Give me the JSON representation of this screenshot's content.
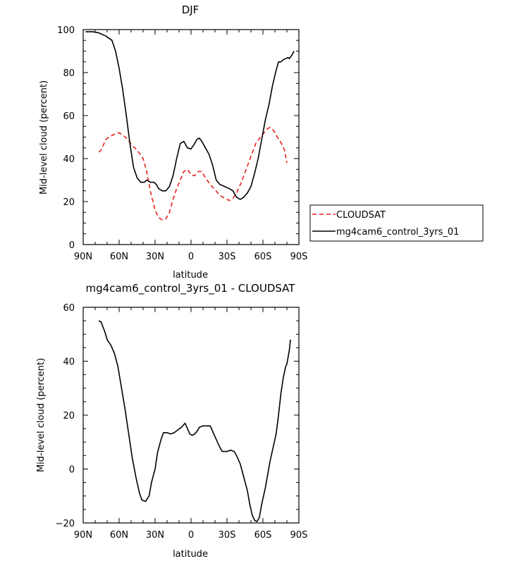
{
  "chart_data": [
    {
      "type": "line",
      "title": "DJF",
      "xlabel": "latitude",
      "ylabel": "Mid-level cloud (percent)",
      "x_axis": "latitude, 90 (north) to -90 (south)",
      "xlim": [
        90,
        -90
      ],
      "ylim": [
        0,
        100
      ],
      "x_ticks": [
        90,
        60,
        30,
        0,
        -30,
        -60,
        -90
      ],
      "x_tick_labels": [
        "90N",
        "60N",
        "30N",
        "0",
        "30S",
        "60S",
        "90S"
      ],
      "y_ticks": [
        0,
        20,
        40,
        60,
        80,
        100
      ],
      "y_tick_labels": [
        "0",
        "20",
        "40",
        "60",
        "80",
        "100"
      ],
      "legend_position": "right",
      "series": [
        {
          "name": "CLOUDSAT",
          "color": "#e8201a",
          "dash": "dashed",
          "points": [
            [
              77,
              43
            ],
            [
              75,
              44
            ],
            [
              71,
              49
            ],
            [
              67,
              50.5
            ],
            [
              63,
              51.5
            ],
            [
              60,
              52
            ],
            [
              57,
              51
            ],
            [
              53,
              49
            ],
            [
              49,
              46
            ],
            [
              45,
              44
            ],
            [
              40,
              40
            ],
            [
              37,
              34
            ],
            [
              34,
              25
            ],
            [
              30,
              16
            ],
            [
              27,
              12.5
            ],
            [
              24,
              11.5
            ],
            [
              21,
              12
            ],
            [
              18,
              15
            ],
            [
              15,
              21
            ],
            [
              12,
              26
            ],
            [
              9,
              30
            ],
            [
              6,
              34
            ],
            [
              3,
              35
            ],
            [
              0,
              32.5
            ],
            [
              -3,
              32
            ],
            [
              -6,
              34
            ],
            [
              -9,
              34
            ],
            [
              -12,
              31
            ],
            [
              -16,
              28
            ],
            [
              -20,
              25.5
            ],
            [
              -24,
              23
            ],
            [
              -28,
              21.5
            ],
            [
              -32,
              20.5
            ],
            [
              -35,
              21.5
            ],
            [
              -38,
              24
            ],
            [
              -42,
              29
            ],
            [
              -46,
              35
            ],
            [
              -50,
              41
            ],
            [
              -54,
              47
            ],
            [
              -58,
              50
            ],
            [
              -61,
              52
            ],
            [
              -64,
              54
            ],
            [
              -66,
              54.5
            ],
            [
              -69,
              53
            ],
            [
              -72,
              50
            ],
            [
              -75,
              47.5
            ],
            [
              -78,
              44
            ],
            [
              -80,
              38
            ]
          ]
        },
        {
          "name": "mg4cam6_control_3yrs_01",
          "color": "#000000",
          "dash": "solid",
          "points": [
            [
              88,
              99
            ],
            [
              82,
              99
            ],
            [
              77,
              98.5
            ],
            [
              71,
              97
            ],
            [
              66,
              95
            ],
            [
              63,
              90
            ],
            [
              60,
              82
            ],
            [
              57,
              72
            ],
            [
              54,
              60
            ],
            [
              51,
              47
            ],
            [
              48,
              36
            ],
            [
              45,
              31
            ],
            [
              42,
              29
            ],
            [
              39,
              29
            ],
            [
              37,
              30
            ],
            [
              34,
              29
            ],
            [
              31,
              29
            ],
            [
              29,
              28
            ],
            [
              27,
              26
            ],
            [
              24,
              25
            ],
            [
              21,
              25
            ],
            [
              18,
              27
            ],
            [
              15,
              32
            ],
            [
              12,
              40
            ],
            [
              9,
              47
            ],
            [
              6,
              48
            ],
            [
              3,
              45
            ],
            [
              0,
              44.5
            ],
            [
              -3,
              47
            ],
            [
              -5,
              49
            ],
            [
              -7,
              49.5
            ],
            [
              -9,
              48
            ],
            [
              -12,
              45
            ],
            [
              -15,
              42
            ],
            [
              -18,
              37
            ],
            [
              -21,
              30
            ],
            [
              -24,
              28
            ],
            [
              -28,
              27
            ],
            [
              -32,
              26
            ],
            [
              -35,
              25
            ],
            [
              -38,
              22
            ],
            [
              -41,
              21
            ],
            [
              -44,
              22
            ],
            [
              -47,
              24
            ],
            [
              -50,
              27
            ],
            [
              -53,
              33
            ],
            [
              -56,
              40
            ],
            [
              -59,
              49
            ],
            [
              -62,
              58
            ],
            [
              -65,
              65
            ],
            [
              -68,
              74
            ],
            [
              -71,
              81
            ],
            [
              -73,
              85
            ],
            [
              -75,
              85
            ],
            [
              -77,
              86
            ],
            [
              -79,
              86.5
            ],
            [
              -81,
              87
            ],
            [
              -82,
              86.5
            ],
            [
              -84,
              88
            ],
            [
              -86,
              90
            ]
          ]
        }
      ]
    },
    {
      "type": "line",
      "title": "mg4cam6_control_3yrs_01 - CLOUDSAT",
      "xlabel": "latitude",
      "ylabel": "Mid-level cloud (percent)",
      "xlim": [
        90,
        -90
      ],
      "ylim": [
        -20,
        60
      ],
      "x_ticks": [
        90,
        60,
        30,
        0,
        -30,
        -60,
        -90
      ],
      "x_tick_labels": [
        "90N",
        "60N",
        "30N",
        "0",
        "30S",
        "60S",
        "90S"
      ],
      "y_ticks": [
        -20,
        0,
        20,
        40,
        60
      ],
      "y_tick_labels": [
        "−20",
        "0",
        "20",
        "40",
        "60"
      ],
      "series": [
        {
          "name": "",
          "color": "#000000",
          "dash": "solid",
          "points": [
            [
              77,
              55
            ],
            [
              75,
              54.5
            ],
            [
              72,
              51
            ],
            [
              70,
              48
            ],
            [
              67,
              46
            ],
            [
              64,
              43
            ],
            [
              61,
              38
            ],
            [
              58,
              30
            ],
            [
              55,
              22
            ],
            [
              52,
              13
            ],
            [
              49,
              4
            ],
            [
              46,
              -3
            ],
            [
              43,
              -9
            ],
            [
              41,
              -11.5
            ],
            [
              38,
              -12
            ],
            [
              35,
              -10
            ],
            [
              33,
              -5
            ],
            [
              30,
              0
            ],
            [
              28,
              6
            ],
            [
              25,
              11
            ],
            [
              23,
              13.5
            ],
            [
              20,
              13.5
            ],
            [
              17,
              13
            ],
            [
              14,
              13.5
            ],
            [
              11,
              14.5
            ],
            [
              8,
              15.5
            ],
            [
              5,
              17
            ],
            [
              3,
              15
            ],
            [
              1,
              13
            ],
            [
              -1,
              12.5
            ],
            [
              -3,
              13
            ],
            [
              -5,
              14
            ],
            [
              -7,
              15.5
            ],
            [
              -10,
              16
            ],
            [
              -13,
              16
            ],
            [
              -16,
              16
            ],
            [
              -18,
              14
            ],
            [
              -20,
              12
            ],
            [
              -23,
              9
            ],
            [
              -26,
              6.5
            ],
            [
              -30,
              6.5
            ],
            [
              -33,
              7
            ],
            [
              -36,
              6.5
            ],
            [
              -38,
              5
            ],
            [
              -41,
              2
            ],
            [
              -44,
              -3
            ],
            [
              -47,
              -8
            ],
            [
              -49,
              -13
            ],
            [
              -51,
              -17
            ],
            [
              -53,
              -19
            ],
            [
              -55,
              -19.5
            ],
            [
              -57,
              -18
            ],
            [
              -59,
              -13
            ],
            [
              -62,
              -7
            ],
            [
              -64,
              -2
            ],
            [
              -66,
              3
            ],
            [
              -69,
              9
            ],
            [
              -71,
              13
            ],
            [
              -73,
              20
            ],
            [
              -75,
              28
            ],
            [
              -77,
              34
            ],
            [
              -79,
              38
            ],
            [
              -80,
              39
            ],
            [
              -82,
              44
            ],
            [
              -83,
              48
            ]
          ]
        }
      ]
    }
  ]
}
